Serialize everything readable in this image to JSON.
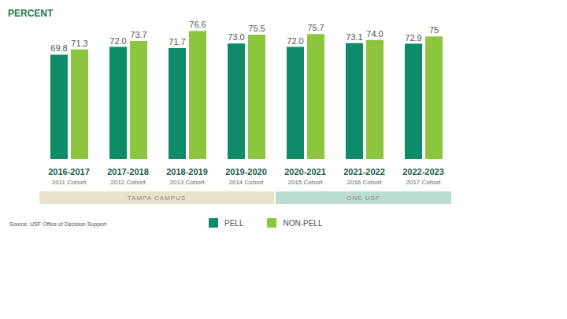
{
  "chart_data": {
    "type": "bar",
    "ylabel": "PERCENT",
    "categories": [
      "2016-2017",
      "2017-2018",
      "2018-2019",
      "2019-2020",
      "2020-2021",
      "2021-2022",
      "2022-2023"
    ],
    "cohorts": [
      "2011 Cohort",
      "2012 Cohort",
      "2013 Cohort",
      "2014 Cohort",
      "2015 Cohort",
      "2016 Cohort",
      "2017 Cohort"
    ],
    "groups": [
      {
        "label": "TAMPA CAMPUS",
        "from": 0,
        "to": 3,
        "color": "#e9e2cc"
      },
      {
        "label": "ONE USF",
        "from": 4,
        "to": 6,
        "color": "#bcdcd2"
      }
    ],
    "series": [
      {
        "name": "PELL",
        "color": "#0e8c69",
        "values": [
          69.8,
          72.0,
          71.7,
          73.0,
          72.0,
          73.1,
          72.9
        ],
        "value_labels": [
          "69.8",
          "72.0",
          "71.7",
          "73.0",
          "72.0",
          "73.1",
          "72.9"
        ]
      },
      {
        "name": "NON-PELL",
        "color": "#8cc63f",
        "values": [
          71.3,
          73.7,
          76.6,
          75.5,
          75.7,
          74.0,
          75
        ],
        "value_labels": [
          "71.3",
          "73.7",
          "76.6",
          "75.5",
          "75.7",
          "74.0",
          "75"
        ]
      }
    ],
    "ylim": [
      40,
      80
    ],
    "tick_labels": "x",
    "data_labels": true,
    "grid": false,
    "source": "Source: USF Office of Decision Support"
  }
}
